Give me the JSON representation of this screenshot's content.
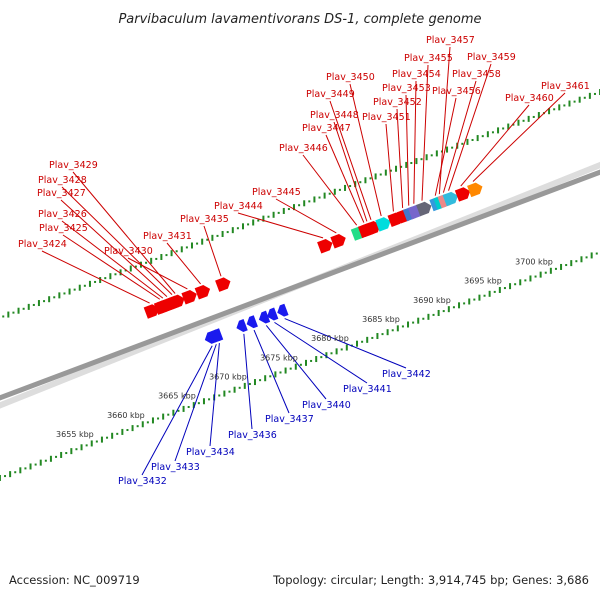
{
  "title": "Parvibaculum lavamentivorans DS-1, complete genome",
  "footer": {
    "accession": "Accession: NC_009719",
    "topology": "Topology: circular; Length: 3,914,745 bp; Genes: 3,686"
  },
  "colors": {
    "forward_label": "#cc0000",
    "reverse_label": "#0000bb",
    "forward_gene": "#ee0000",
    "reverse_gene": "#1a1aee",
    "axis": "#999999",
    "tick": "#228822"
  },
  "scale": {
    "labels": [
      {
        "kbp": 3655,
        "text": "3655 kbp"
      },
      {
        "kbp": 3660,
        "text": "3660 kbp"
      },
      {
        "kbp": 3665,
        "text": "3665 kbp"
      },
      {
        "kbp": 3670,
        "text": "3670 kbp"
      },
      {
        "kbp": 3675,
        "text": "3675 kbp"
      },
      {
        "kbp": 3680,
        "text": "3680 kbp"
      },
      {
        "kbp": 3685,
        "text": "3685 kbp"
      },
      {
        "kbp": 3690,
        "text": "3690 kbp"
      },
      {
        "kbp": 3695,
        "text": "3695 kbp"
      },
      {
        "kbp": 3700,
        "text": "3700 kbp"
      }
    ]
  },
  "genes": {
    "forward": [
      {
        "name": "Plav_3424",
        "kbp": 3666.5
      },
      {
        "name": "Plav_3425",
        "kbp": 3667.5
      },
      {
        "name": "Plav_3426",
        "kbp": 3667.8
      },
      {
        "name": "Plav_3427",
        "kbp": 3668.2
      },
      {
        "name": "Plav_3428",
        "kbp": 3668.7
      },
      {
        "name": "Plav_3429",
        "kbp": 3669.0
      },
      {
        "name": "Plav_3430",
        "kbp": 3670.2
      },
      {
        "name": "Plav_3431",
        "kbp": 3671.5
      },
      {
        "name": "Plav_3435",
        "kbp": 3673.5
      },
      {
        "name": "Plav_3444",
        "kbp": 3683.5
      },
      {
        "name": "Plav_3445",
        "kbp": 3684.8
      },
      {
        "name": "Plav_3446",
        "kbp": 3686.8
      },
      {
        "name": "Plav_3447",
        "kbp": 3687.5
      },
      {
        "name": "Plav_3448",
        "kbp": 3687.8
      },
      {
        "name": "Plav_3449",
        "kbp": 3688.2
      },
      {
        "name": "Plav_3450",
        "kbp": 3689.2
      },
      {
        "name": "Plav_3451",
        "kbp": 3690.4
      },
      {
        "name": "Plav_3452",
        "kbp": 3691.3
      },
      {
        "name": "Plav_3453",
        "kbp": 3691.9
      },
      {
        "name": "Plav_3454",
        "kbp": 3692.4
      },
      {
        "name": "Plav_3455",
        "kbp": 3693.2
      },
      {
        "name": "Plav_3456",
        "kbp": 3694.5
      },
      {
        "name": "Plav_3457",
        "kbp": 3694.9
      },
      {
        "name": "Plav_3458",
        "kbp": 3695.3
      },
      {
        "name": "Plav_3459",
        "kbp": 3695.8
      },
      {
        "name": "Plav_3460",
        "kbp": 3697.0
      },
      {
        "name": "Plav_3461",
        "kbp": 3698.2
      }
    ],
    "reverse": [
      {
        "name": "Plav_3432",
        "kbp": 3670.5
      },
      {
        "name": "Plav_3433",
        "kbp": 3670.9
      },
      {
        "name": "Plav_3434",
        "kbp": 3671.2
      },
      {
        "name": "Plav_3436",
        "kbp": 3673.6
      },
      {
        "name": "Plav_3437",
        "kbp": 3674.6
      },
      {
        "name": "Plav_3440",
        "kbp": 3675.8
      },
      {
        "name": "Plav_3441",
        "kbp": 3676.6
      },
      {
        "name": "Plav_3442",
        "kbp": 3677.6
      }
    ]
  }
}
